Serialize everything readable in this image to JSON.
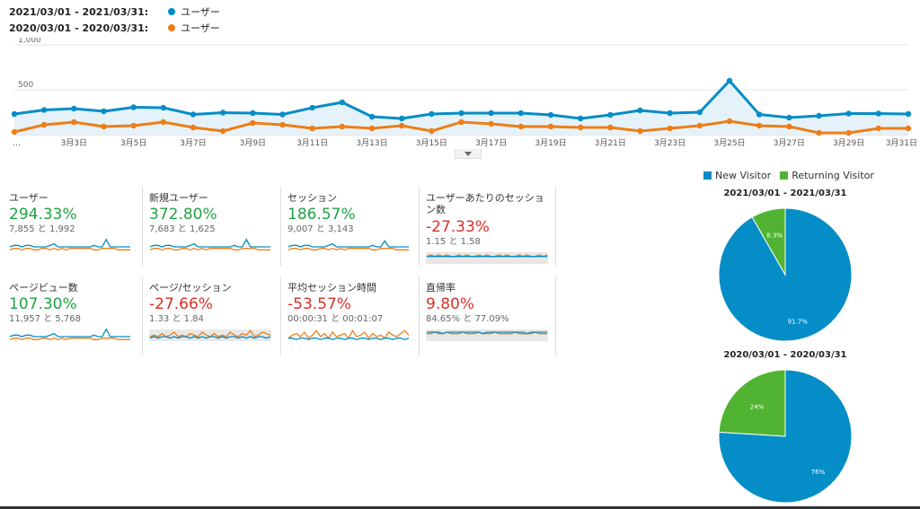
{
  "legend": {
    "current": {
      "range": "2021/03/01 - 2021/03/31:",
      "series": "ユーザー",
      "color": "#058dc7"
    },
    "previous": {
      "range": "2020/03/01 - 2020/03/31:",
      "series": "ユーザー",
      "color": "#ed7e17"
    }
  },
  "chart_data": [
    {
      "type": "line",
      "ylabels": [
        "1,000",
        "500"
      ],
      "ylim": [
        0,
        1000
      ],
      "x_first_label": "…",
      "xlabels": [
        "3月3日",
        "3月5日",
        "3月7日",
        "3月9日",
        "3月11日",
        "3月13日",
        "3月15日",
        "3月17日",
        "3月19日",
        "3月21日",
        "3月23日",
        "3月25日",
        "3月27日",
        "3月29日",
        "3月31日"
      ],
      "series": [
        {
          "name": "2021/03/01 - 2021/03/31",
          "color": "#058dc7",
          "values": [
            230,
            275,
            290,
            260,
            305,
            300,
            225,
            245,
            240,
            225,
            300,
            360,
            200,
            180,
            230,
            240,
            240,
            240,
            220,
            180,
            220,
            270,
            240,
            250,
            600,
            225,
            190,
            210,
            235,
            235,
            230
          ]
        },
        {
          "name": "2020/03/01 - 2020/03/31",
          "color": "#ed7e17",
          "values": [
            30,
            110,
            140,
            90,
            100,
            140,
            80,
            40,
            130,
            110,
            70,
            90,
            70,
            100,
            40,
            140,
            120,
            90,
            90,
            80,
            80,
            40,
            70,
            100,
            150,
            100,
            90,
            20,
            20,
            70,
            70
          ]
        }
      ]
    },
    {
      "type": "pie",
      "title": "2021/03/01 - 2021/03/31",
      "categories": [
        "New Visitor",
        "Returning Visitor"
      ],
      "values": [
        91.7,
        8.3
      ],
      "labels": [
        "91.7%",
        "8.3%"
      ]
    },
    {
      "type": "pie",
      "title": "2020/03/01 - 2020/03/31",
      "categories": [
        "New Visitor",
        "Returning Visitor"
      ],
      "values": [
        76,
        24
      ],
      "labels": [
        "76%",
        "24%"
      ]
    }
  ],
  "pie_legend": [
    {
      "label": "New Visitor",
      "color": "#058dc7"
    },
    {
      "label": "Returning Visitor",
      "color": "#50b432"
    }
  ],
  "metrics": [
    {
      "label": "ユーザー",
      "value": "294.33%",
      "sub": "7,855 と 1,992",
      "trend": "pos",
      "spark": {
        "a": [
          3,
          4,
          4,
          3,
          4,
          4,
          3,
          3,
          3,
          3,
          4,
          5,
          3,
          3,
          3,
          3,
          3,
          3,
          3,
          3,
          3,
          4,
          3,
          3,
          8,
          3,
          3,
          3,
          3,
          3,
          3
        ],
        "b": [
          1,
          2,
          2,
          1,
          2,
          2,
          1,
          1,
          2,
          2,
          1,
          2,
          1,
          2,
          1,
          2,
          2,
          2,
          2,
          2,
          2,
          1,
          1,
          2,
          2,
          2,
          2,
          1,
          1,
          1,
          1
        ],
        "shaded": false
      }
    },
    {
      "label": "新規ユーザー",
      "value": "372.80%",
      "sub": "7,683 と 1,625",
      "trend": "pos",
      "spark": {
        "a": [
          3,
          4,
          4,
          3,
          4,
          4,
          3,
          3,
          3,
          3,
          4,
          5,
          3,
          3,
          3,
          3,
          3,
          3,
          3,
          3,
          3,
          4,
          3,
          3,
          8,
          3,
          3,
          3,
          3,
          3,
          3
        ],
        "b": [
          1,
          2,
          2,
          1,
          2,
          2,
          1,
          1,
          2,
          2,
          1,
          2,
          1,
          2,
          1,
          2,
          2,
          2,
          2,
          2,
          2,
          1,
          1,
          2,
          2,
          2,
          2,
          1,
          1,
          1,
          1
        ],
        "shaded": false
      }
    },
    {
      "label": "セッション",
      "value": "186.57%",
      "sub": "9,007 と 3,143",
      "trend": "pos",
      "spark": {
        "a": [
          3,
          4,
          4,
          3,
          4,
          4,
          3,
          3,
          3,
          3,
          4,
          5,
          3,
          3,
          3,
          3,
          3,
          3,
          3,
          3,
          3,
          4,
          3,
          3,
          7,
          3,
          3,
          3,
          3,
          3,
          3
        ],
        "b": [
          1,
          2,
          2,
          1,
          2,
          2,
          1,
          1,
          2,
          2,
          1,
          2,
          1,
          2,
          1,
          2,
          2,
          2,
          2,
          2,
          2,
          1,
          1,
          2,
          2,
          2,
          2,
          1,
          1,
          1,
          1
        ],
        "shaded": false
      }
    },
    {
      "label": "ユーザーあたりのセッション数",
      "value": "-27.33%",
      "sub": "1.15 と 1.58",
      "trend": "neg",
      "spark": {
        "a": [
          5,
          5,
          5,
          5,
          5,
          5,
          5,
          5,
          5,
          5,
          5,
          5,
          5,
          5,
          5,
          5,
          5,
          5,
          5,
          5,
          5,
          5,
          5,
          5,
          5,
          5,
          5,
          5,
          5,
          5,
          5
        ],
        "b": [
          5,
          6,
          5,
          6,
          5,
          6,
          5,
          5,
          6,
          5,
          6,
          5,
          5,
          6,
          5,
          6,
          5,
          5,
          6,
          5,
          6,
          5,
          5,
          6,
          5,
          6,
          5,
          5,
          6,
          5,
          6
        ],
        "shaded": true
      }
    },
    {
      "label": "ページビュー数",
      "value": "107.30%",
      "sub": "11,957 と 5,768",
      "trend": "pos",
      "spark": {
        "a": [
          3,
          4,
          4,
          3,
          4,
          4,
          3,
          3,
          3,
          3,
          4,
          5,
          3,
          3,
          3,
          3,
          3,
          3,
          3,
          3,
          3,
          4,
          3,
          3,
          8,
          3,
          3,
          3,
          3,
          3,
          3
        ],
        "b": [
          1,
          2,
          2,
          1,
          2,
          2,
          1,
          1,
          2,
          2,
          1,
          2,
          1,
          2,
          1,
          2,
          2,
          2,
          2,
          2,
          2,
          1,
          1,
          2,
          2,
          2,
          2,
          1,
          1,
          1,
          1
        ],
        "shaded": false
      }
    },
    {
      "label": "ページ/セッション",
      "value": "-27.66%",
      "sub": "1.33 と 1.84",
      "trend": "neg",
      "spark": {
        "a": [
          2,
          3,
          2,
          3,
          3,
          2,
          3,
          2,
          3,
          3,
          2,
          3,
          2,
          3,
          2,
          3,
          3,
          2,
          3,
          2,
          3,
          3,
          2,
          3,
          2,
          3,
          2,
          3,
          3,
          2,
          3
        ],
        "b": [
          3,
          4,
          3,
          5,
          3,
          4,
          6,
          3,
          4,
          3,
          5,
          4,
          3,
          6,
          4,
          3,
          5,
          3,
          4,
          3,
          6,
          4,
          3,
          5,
          4,
          7,
          3,
          4,
          6,
          5,
          4
        ],
        "shaded": true
      }
    },
    {
      "label": "平均セッション時間",
      "value": "-53.57%",
      "sub": "00:00:31 と 00:01:07",
      "trend": "neg",
      "spark": {
        "a": [
          2,
          2,
          1,
          2,
          2,
          1,
          2,
          2,
          1,
          2,
          2,
          1,
          2,
          2,
          1,
          2,
          2,
          1,
          2,
          2,
          1,
          2,
          2,
          1,
          2,
          2,
          1,
          2,
          2,
          1,
          2
        ],
        "b": [
          2,
          4,
          5,
          3,
          6,
          2,
          4,
          7,
          3,
          5,
          2,
          6,
          3,
          4,
          5,
          2,
          7,
          3,
          4,
          6,
          2,
          5,
          3,
          4,
          2,
          6,
          4,
          3,
          5,
          7,
          4
        ],
        "shaded": false
      }
    },
    {
      "label": "直帰率",
      "value": "9.80%",
      "sub": "84.65% と 77.09%",
      "trend": "neg",
      "spark": {
        "a": [
          6,
          6,
          6,
          6,
          5,
          6,
          6,
          6,
          6,
          6,
          6,
          6,
          6,
          6,
          5,
          6,
          6,
          6,
          6,
          6,
          6,
          6,
          6,
          6,
          6,
          5,
          6,
          6,
          6,
          6,
          6
        ],
        "b": [
          5,
          5,
          6,
          5,
          5,
          6,
          5,
          5,
          5,
          6,
          5,
          5,
          5,
          6,
          5,
          5,
          5,
          6,
          5,
          5,
          5,
          5,
          6,
          5,
          5,
          5,
          5,
          6,
          5,
          5,
          5
        ],
        "shaded": true
      }
    }
  ]
}
